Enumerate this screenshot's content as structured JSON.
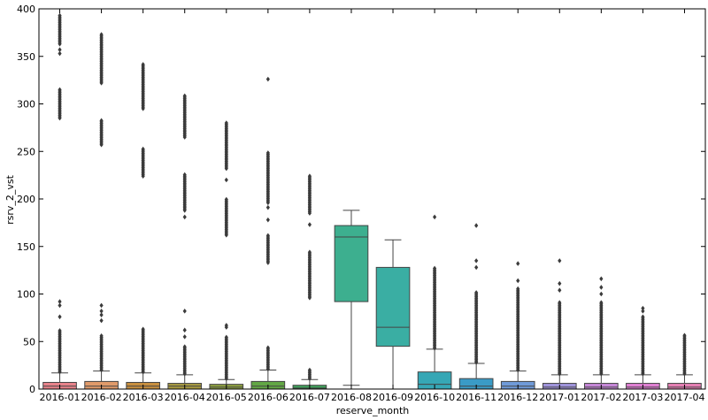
{
  "chart_data": {
    "type": "box",
    "xlabel": "reserve_month",
    "ylabel": "rsrv_2_vst",
    "ylim": [
      0,
      400
    ],
    "yticks": [
      0,
      50,
      100,
      150,
      200,
      250,
      300,
      350,
      400
    ],
    "grid": false,
    "legend": "none",
    "boxes": [
      {
        "category": "2016-01",
        "color": "#e8828a",
        "q1": 0,
        "median": 3,
        "q3": 7,
        "whisker_low": 0,
        "whisker_high": 17,
        "outliers": [
          {
            "from": 18,
            "to": 62,
            "dense": true
          },
          76,
          88,
          92,
          {
            "from": 285,
            "to": 315,
            "dense": true
          },
          353,
          357,
          {
            "from": 363,
            "to": 393,
            "dense": true
          }
        ]
      },
      {
        "category": "2016-02",
        "color": "#e09a6a",
        "q1": 0,
        "median": 3,
        "q3": 8,
        "whisker_low": 0,
        "whisker_high": 19,
        "outliers": [
          {
            "from": 20,
            "to": 56,
            "dense": true
          },
          72,
          78,
          82,
          88,
          {
            "from": 257,
            "to": 283,
            "dense": true
          },
          {
            "from": 322,
            "to": 373,
            "dense": true
          }
        ]
      },
      {
        "category": "2016-03",
        "color": "#c88f3e",
        "q1": 0,
        "median": 3,
        "q3": 7,
        "whisker_low": 0,
        "whisker_high": 17,
        "outliers": [
          {
            "from": 18,
            "to": 63,
            "dense": true
          },
          {
            "from": 224,
            "to": 253,
            "dense": true
          },
          {
            "from": 295,
            "to": 342,
            "dense": true
          }
        ]
      },
      {
        "category": "2016-04",
        "color": "#a89a40",
        "q1": 0,
        "median": 3,
        "q3": 6,
        "whisker_low": 0,
        "whisker_high": 15,
        "outliers": [
          {
            "from": 16,
            "to": 45,
            "dense": true
          },
          55,
          62,
          82,
          181,
          {
            "from": 188,
            "to": 226,
            "dense": true
          },
          {
            "from": 265,
            "to": 309,
            "dense": true
          }
        ]
      },
      {
        "category": "2016-05",
        "color": "#8da040",
        "q1": 0,
        "median": 2,
        "q3": 5,
        "whisker_low": 0,
        "whisker_high": 10,
        "outliers": [
          {
            "from": 11,
            "to": 55,
            "dense": true
          },
          65,
          67,
          {
            "from": 162,
            "to": 200,
            "dense": true
          },
          220,
          {
            "from": 232,
            "to": 280,
            "dense": true
          }
        ]
      },
      {
        "category": "2016-06",
        "color": "#62a744",
        "q1": 0,
        "median": 3,
        "q3": 8,
        "whisker_low": 0,
        "whisker_high": 20,
        "outliers": [
          {
            "from": 21,
            "to": 44,
            "dense": true
          },
          {
            "from": 133,
            "to": 162,
            "dense": true
          },
          178,
          191,
          {
            "from": 196,
            "to": 249,
            "dense": true
          },
          326
        ]
      },
      {
        "category": "2016-07",
        "color": "#3fa15b",
        "q1": 0,
        "median": 1,
        "q3": 4,
        "whisker_low": 0,
        "whisker_high": 10,
        "outliers": [
          {
            "from": 11,
            "to": 20,
            "dense": true
          },
          {
            "from": 96,
            "to": 145,
            "dense": true
          },
          173,
          {
            "from": 185,
            "to": 224,
            "dense": true
          }
        ]
      },
      {
        "category": "2016-08",
        "color": "#3daf8f",
        "q1": 92,
        "median": 160,
        "q3": 172,
        "whisker_low": 4,
        "whisker_high": 188,
        "outliers": []
      },
      {
        "category": "2016-09",
        "color": "#3aaea3",
        "q1": 45,
        "median": 65,
        "q3": 128,
        "whisker_low": 0,
        "whisker_high": 157,
        "outliers": []
      },
      {
        "category": "2016-10",
        "color": "#36a7b5",
        "q1": 0,
        "median": 5,
        "q3": 18,
        "whisker_low": 0,
        "whisker_high": 42,
        "outliers": [
          {
            "from": 43,
            "to": 127,
            "dense": true
          },
          181
        ]
      },
      {
        "category": "2016-11",
        "color": "#3a9bc6",
        "q1": 0,
        "median": 3,
        "q3": 11,
        "whisker_low": 0,
        "whisker_high": 27,
        "outliers": [
          {
            "from": 28,
            "to": 102,
            "dense": true
          },
          128,
          135,
          172
        ]
      },
      {
        "category": "2016-12",
        "color": "#6f9ad8",
        "q1": 0,
        "median": 3,
        "q3": 8,
        "whisker_low": 0,
        "whisker_high": 19,
        "outliers": [
          {
            "from": 20,
            "to": 106,
            "dense": true
          },
          114,
          132
        ]
      },
      {
        "category": "2017-01",
        "color": "#a094dc",
        "q1": 0,
        "median": 2,
        "q3": 6,
        "whisker_low": 0,
        "whisker_high": 15,
        "outliers": [
          {
            "from": 16,
            "to": 92,
            "dense": true
          },
          104,
          111,
          135
        ]
      },
      {
        "category": "2017-02",
        "color": "#c687d8",
        "q1": 0,
        "median": 2,
        "q3": 6,
        "whisker_low": 0,
        "whisker_high": 15,
        "outliers": [
          {
            "from": 16,
            "to": 92,
            "dense": true
          },
          100,
          107,
          116
        ]
      },
      {
        "category": "2017-03",
        "color": "#e07fd3",
        "q1": 0,
        "median": 2,
        "q3": 6,
        "whisker_low": 0,
        "whisker_high": 15,
        "outliers": [
          {
            "from": 16,
            "to": 76,
            "dense": true
          },
          82,
          85
        ]
      },
      {
        "category": "2017-04",
        "color": "#e67fb4",
        "q1": 0,
        "median": 2,
        "q3": 6,
        "whisker_low": 0,
        "whisker_high": 15,
        "outliers": [
          {
            "from": 16,
            "to": 57,
            "dense": true
          }
        ]
      }
    ]
  }
}
